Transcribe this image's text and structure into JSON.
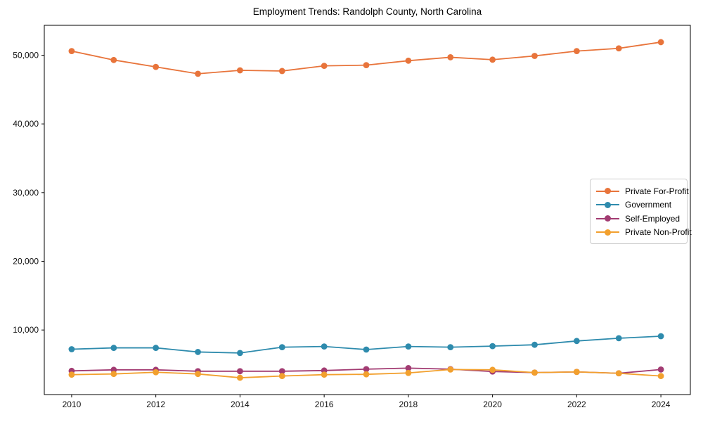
{
  "chart_data": {
    "type": "line",
    "title": "Employment Trends: Randolph County, North Carolina",
    "xlabel": "",
    "ylabel": "",
    "x": [
      2010,
      2011,
      2012,
      2013,
      2014,
      2015,
      2016,
      2017,
      2018,
      2019,
      2020,
      2021,
      2022,
      2023,
      2024
    ],
    "series": [
      {
        "name": "Private For-Profit",
        "color": "#E8743B",
        "values": [
          50600,
          49300,
          48300,
          47300,
          47800,
          47700,
          48450,
          48550,
          49200,
          49700,
          49350,
          49900,
          50600,
          51000,
          51900
        ]
      },
      {
        "name": "Government",
        "color": "#2E8BAD",
        "values": [
          7200,
          7400,
          7400,
          6800,
          6650,
          7500,
          7600,
          7150,
          7600,
          7500,
          7650,
          7850,
          8400,
          8800,
          9100
        ]
      },
      {
        "name": "Self-Employed",
        "color": "#A23B72",
        "values": [
          4050,
          4200,
          4200,
          4000,
          4000,
          4000,
          4100,
          4300,
          4450,
          4300,
          3950,
          3800,
          3900,
          3700,
          4250
        ]
      },
      {
        "name": "Private Non-Profit",
        "color": "#F2A02E",
        "values": [
          3500,
          3600,
          3850,
          3600,
          3050,
          3300,
          3500,
          3550,
          3750,
          4250,
          4200,
          3800,
          3900,
          3700,
          3300
        ]
      }
    ],
    "xticks": [
      2010,
      2012,
      2014,
      2016,
      2018,
      2020,
      2022,
      2024
    ],
    "yticks": [
      10000,
      20000,
      30000,
      40000,
      50000
    ],
    "ytick_labels": [
      "10,000",
      "20,000",
      "30,000",
      "40,000",
      "50,000"
    ],
    "xlim": [
      2009.35,
      2024.7
    ],
    "ylim": [
      600,
      54350
    ],
    "grid": false,
    "legend_position": "center right"
  },
  "colors": {
    "background": "#ffffff",
    "spine": "#000000",
    "tick_label": "#111111",
    "legend_border": "#cccccc"
  }
}
